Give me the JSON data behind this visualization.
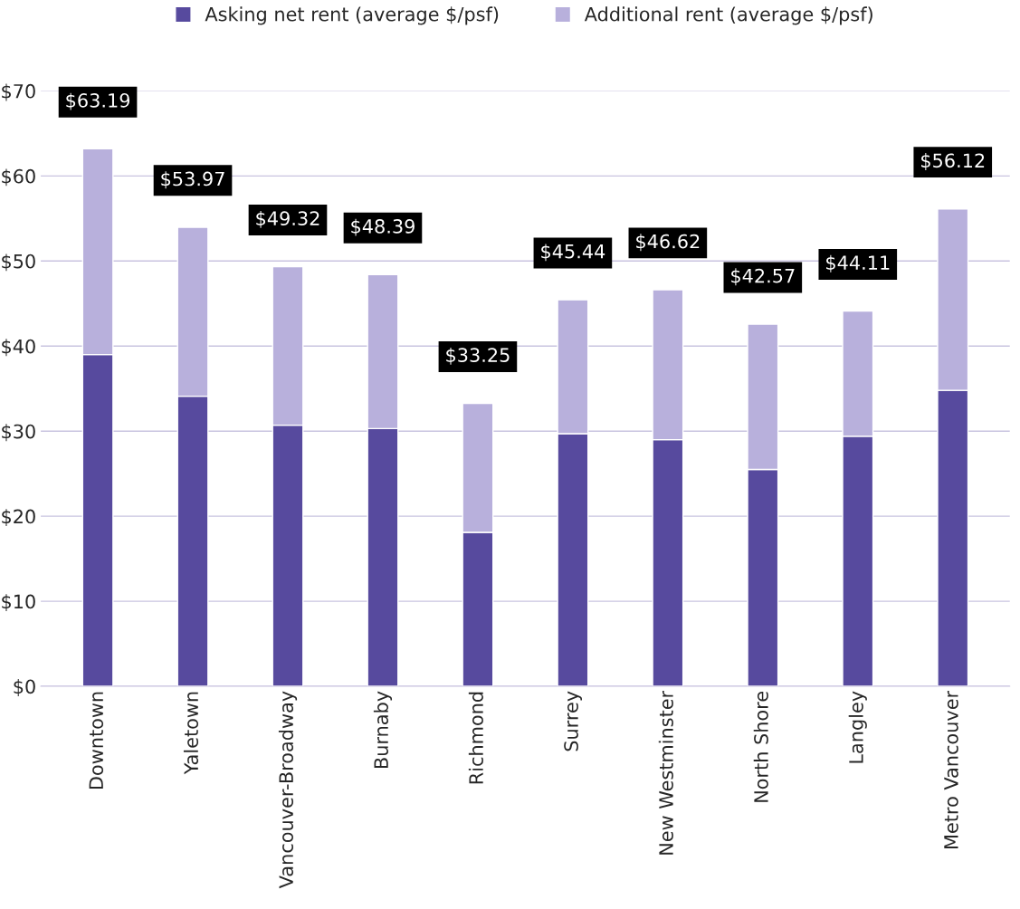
{
  "chart_data": {
    "type": "bar",
    "stacked": true,
    "categories": [
      "Downtown",
      "Yaletown",
      "Vancouver-Broadway",
      "Burnaby",
      "Richmond",
      "Surrey",
      "New Westminster",
      "North Shore",
      "Langley",
      "Metro Vancouver"
    ],
    "series": [
      {
        "name": "Asking net rent (average $/psf)",
        "color": "#574a9e",
        "values": [
          39.0,
          34.1,
          30.7,
          30.3,
          18.1,
          29.7,
          29.0,
          25.5,
          29.4,
          34.8
        ]
      },
      {
        "name": "Additional rent (average $/psf)",
        "color": "#b8b0dc",
        "values": [
          24.19,
          19.87,
          18.62,
          18.09,
          15.15,
          15.74,
          17.62,
          17.07,
          14.71,
          21.32
        ]
      }
    ],
    "totals": [
      "$63.19",
      "$53.97",
      "$49.32",
      "$48.39",
      "$33.25",
      "$45.44",
      "$46.62",
      "$42.57",
      "$44.11",
      "$56.12"
    ],
    "ylim": [
      0,
      70
    ],
    "yticks": [
      {
        "value": 0,
        "label": "$0"
      },
      {
        "value": 10,
        "label": "$10"
      },
      {
        "value": 20,
        "label": "$20"
      },
      {
        "value": 30,
        "label": "$30"
      },
      {
        "value": 40,
        "label": "$40"
      },
      {
        "value": 50,
        "label": "$50"
      },
      {
        "value": 60,
        "label": "$60"
      },
      {
        "value": 70,
        "label": "$70"
      }
    ],
    "grid": "y",
    "legend": "top"
  }
}
